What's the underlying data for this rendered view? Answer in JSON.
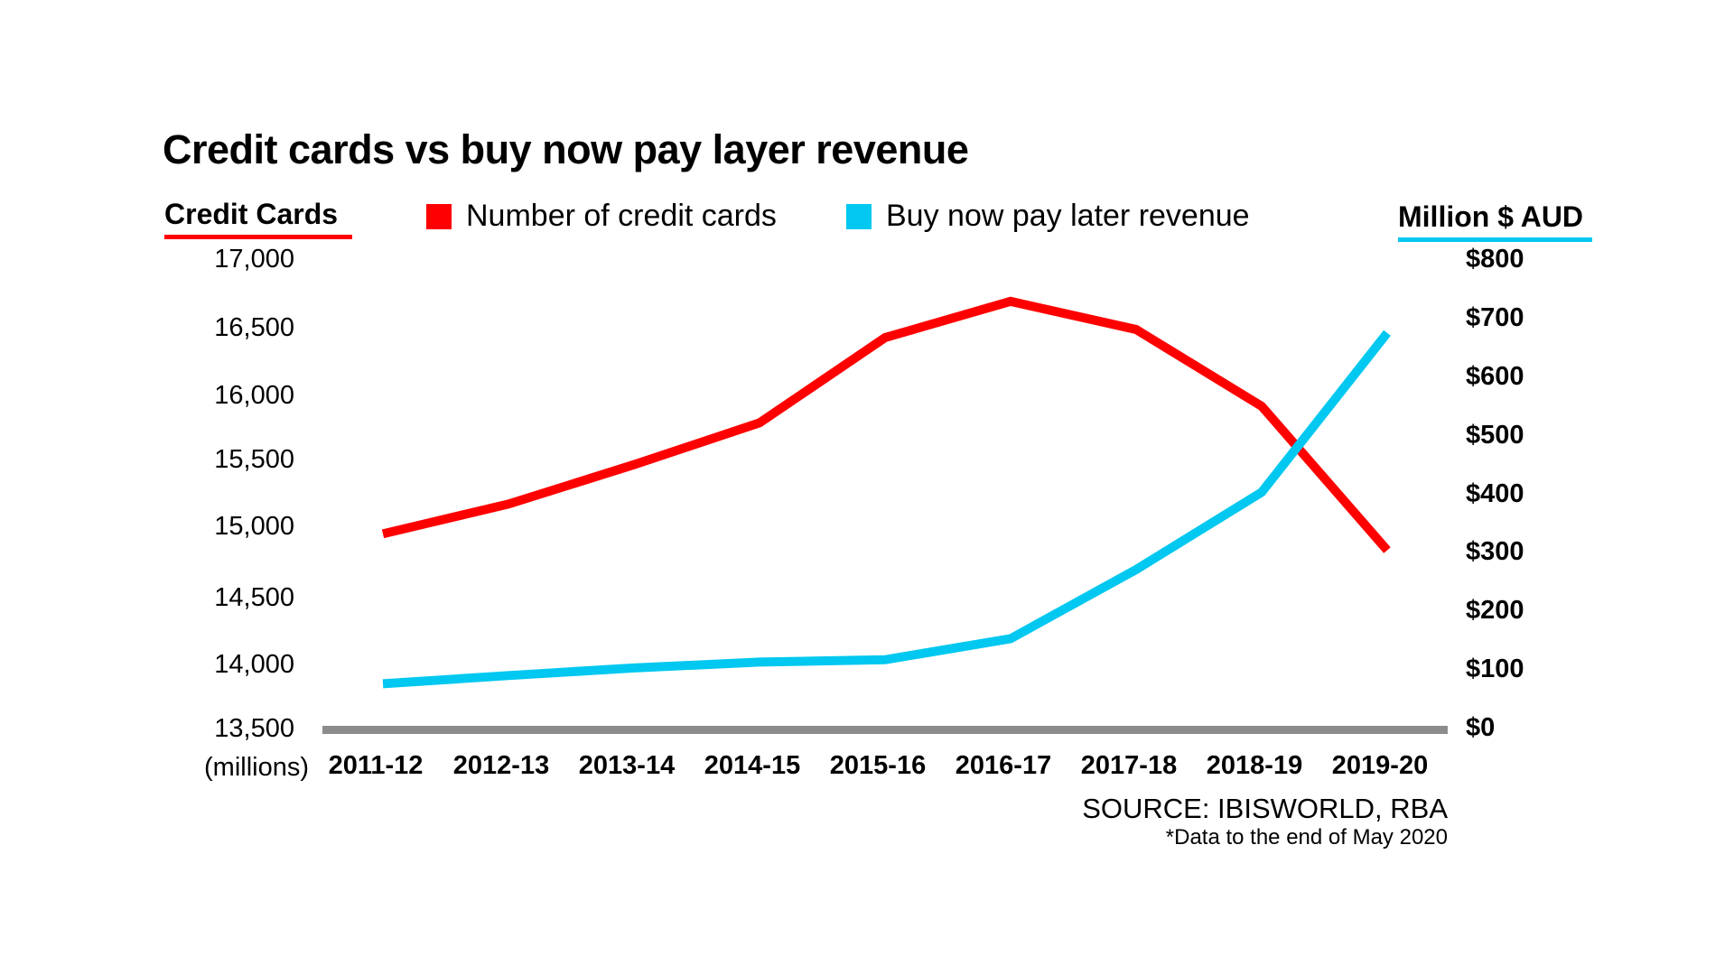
{
  "chart_data": {
    "type": "line",
    "title": "Credit cards vs buy now pay layer revenue",
    "categories": [
      "2011-12",
      "2012-13",
      "2013-14",
      "2014-15",
      "2015-16",
      "2016-17",
      "2017-18",
      "2018-19",
      "2019-20"
    ],
    "series": [
      {
        "name": "Number of credit cards",
        "axis": "left",
        "color": "#ff0000",
        "values": [
          14960,
          15180,
          15475,
          15800,
          16440,
          16705,
          16500,
          15930,
          14845
        ]
      },
      {
        "name": "Buy now pay later revenue",
        "axis": "right",
        "color": "#00c8f0",
        "values": [
          78,
          92,
          105,
          115,
          119,
          155,
          273,
          405,
          677
        ]
      }
    ],
    "y_left": {
      "label": "Credit Cards",
      "unit_label": "(millions)",
      "range": [
        13500,
        17000
      ],
      "ticks": [
        17000,
        16500,
        16000,
        15500,
        15000,
        14500,
        14000,
        13500
      ],
      "tick_labels": [
        "17,000",
        "16,500",
        "16,000",
        "15,500",
        "15,000",
        "14,500",
        "14,000",
        "13,500"
      ]
    },
    "y_right": {
      "label": "Million $ AUD",
      "range": [
        0,
        800
      ],
      "ticks": [
        800,
        700,
        600,
        500,
        400,
        300,
        200,
        100,
        0
      ],
      "tick_labels": [
        "$800",
        "$700",
        "$600",
        "$500",
        "$400",
        "$300",
        "$200",
        "$100",
        "$0"
      ]
    },
    "legend": {
      "placement": "top",
      "entries": [
        {
          "label": "Number of credit cards",
          "color": "#ff0000"
        },
        {
          "label": "Buy now pay later revenue",
          "color": "#00c8f0"
        }
      ]
    },
    "grid": false,
    "baseline_color": "#8c8c8c",
    "source": "SOURCE: IBISWORLD, RBA",
    "note": "*Data to the end of May 2020"
  }
}
